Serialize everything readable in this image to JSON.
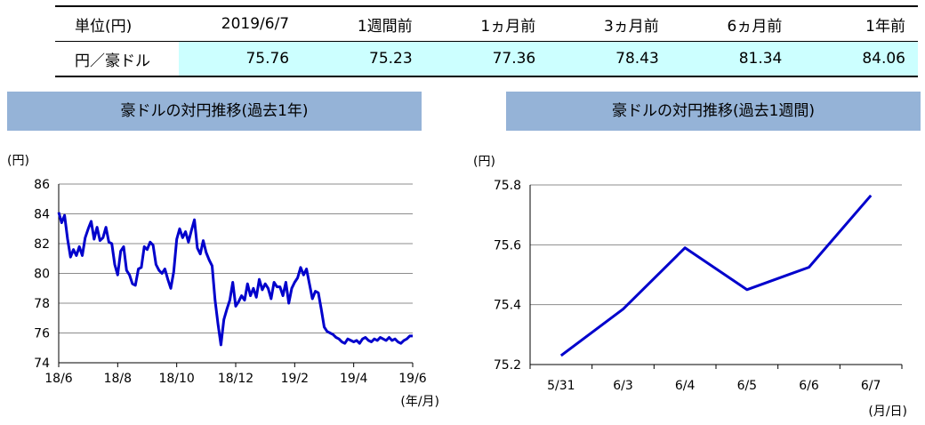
{
  "table": {
    "headers": [
      "単位(円)",
      "2019/6/7",
      "1週間前",
      "1ヵ月前",
      "3ヵ月前",
      "6ヵ月前",
      "1年前"
    ],
    "row_label": "円／豪ドル",
    "values": [
      "75.76",
      "75.23",
      "77.36",
      "78.43",
      "81.34",
      "84.06"
    ]
  },
  "chart_data": [
    {
      "type": "line",
      "title": "豪ドルの対円推移(過去1年)",
      "ylabel": "(円)",
      "xlabel": "(年/月)",
      "ylim": [
        74,
        86
      ],
      "yticks": [
        74,
        76,
        78,
        80,
        82,
        84,
        86
      ],
      "xlim": [
        0,
        12
      ],
      "xticks": [
        {
          "x": 0,
          "label": "18/6"
        },
        {
          "x": 2,
          "label": "18/8"
        },
        {
          "x": 4,
          "label": "18/10"
        },
        {
          "x": 6,
          "label": "18/12"
        },
        {
          "x": 8,
          "label": "19/2"
        },
        {
          "x": 10,
          "label": "19/4"
        },
        {
          "x": 12,
          "label": "19/6"
        }
      ],
      "grid": true,
      "color": "#0000cc",
      "series": [
        {
          "x": [
            0.0,
            0.1,
            0.2,
            0.3,
            0.4,
            0.5,
            0.6,
            0.7,
            0.8,
            0.9,
            1.0,
            1.1,
            1.2,
            1.3,
            1.4,
            1.5,
            1.6,
            1.7,
            1.8,
            1.9,
            2.0,
            2.1,
            2.2,
            2.3,
            2.4,
            2.5,
            2.6,
            2.7,
            2.8,
            2.9,
            3.0,
            3.1,
            3.2,
            3.3,
            3.4,
            3.5,
            3.6,
            3.7,
            3.8,
            3.9,
            4.0,
            4.1,
            4.2,
            4.3,
            4.4,
            4.5,
            4.6,
            4.7,
            4.8,
            4.9,
            5.0,
            5.1,
            5.2,
            5.3,
            5.4,
            5.5,
            5.6,
            5.7,
            5.8,
            5.9,
            6.0,
            6.1,
            6.2,
            6.3,
            6.4,
            6.5,
            6.6,
            6.7,
            6.8,
            6.9,
            7.0,
            7.1,
            7.2,
            7.3,
            7.4,
            7.5,
            7.6,
            7.7,
            7.8,
            7.9,
            8.0,
            8.1,
            8.2,
            8.3,
            8.4,
            8.5,
            8.6,
            8.7,
            8.8,
            8.9,
            9.0,
            9.1,
            9.2,
            9.3,
            9.4,
            9.5,
            9.6,
            9.7,
            9.8,
            9.9,
            10.0,
            10.1,
            10.2,
            10.3,
            10.4,
            10.5,
            10.6,
            10.7,
            10.8,
            10.9,
            11.0,
            11.1,
            11.2,
            11.3,
            11.4,
            11.5,
            11.6,
            11.7,
            11.8,
            11.9,
            12.0
          ],
          "values": [
            84.1,
            83.4,
            83.9,
            82.3,
            81.1,
            81.6,
            81.2,
            81.8,
            81.2,
            82.4,
            83.0,
            83.5,
            82.3,
            83.1,
            82.2,
            82.4,
            83.1,
            82.1,
            82.0,
            80.6,
            79.9,
            81.5,
            81.8,
            80.2,
            79.9,
            79.3,
            79.2,
            80.3,
            80.4,
            81.8,
            81.6,
            82.1,
            81.9,
            80.6,
            80.2,
            80.0,
            80.3,
            79.6,
            79.0,
            80.1,
            82.3,
            83.0,
            82.4,
            82.8,
            82.1,
            82.9,
            83.6,
            81.7,
            81.3,
            82.2,
            81.4,
            80.9,
            80.5,
            78.2,
            76.6,
            75.2,
            76.9,
            77.6,
            78.2,
            79.4,
            77.8,
            78.1,
            78.5,
            78.2,
            79.3,
            78.5,
            79.0,
            78.4,
            79.6,
            78.9,
            79.3,
            79.0,
            78.3,
            79.4,
            79.1,
            79.1,
            78.5,
            79.4,
            78.0,
            79.0,
            79.4,
            79.7,
            80.4,
            79.9,
            80.3,
            79.3,
            78.3,
            78.8,
            78.7,
            77.6,
            76.4,
            76.1,
            76.0,
            75.9,
            75.7,
            75.6,
            75.4,
            75.3,
            75.6,
            75.5,
            75.4,
            75.5,
            75.3,
            75.6,
            75.7,
            75.5,
            75.4,
            75.6,
            75.5,
            75.7,
            75.6,
            75.5,
            75.7,
            75.5,
            75.6,
            75.4,
            75.3,
            75.5,
            75.6,
            75.8,
            75.8
          ]
        }
      ]
    },
    {
      "type": "line",
      "title": "豪ドルの対円推移(過去1週間)",
      "ylabel": "(円)",
      "xlabel": "(月/日)",
      "ylim": [
        75.2,
        75.8
      ],
      "yticks": [
        75.2,
        75.4,
        75.6,
        75.8
      ],
      "categories": [
        "5/31",
        "6/3",
        "6/4",
        "6/5",
        "6/6",
        "6/7"
      ],
      "grid": true,
      "color": "#0000cc",
      "series": [
        {
          "values": [
            75.23,
            75.385,
            75.59,
            75.45,
            75.525,
            75.765
          ]
        }
      ]
    }
  ]
}
